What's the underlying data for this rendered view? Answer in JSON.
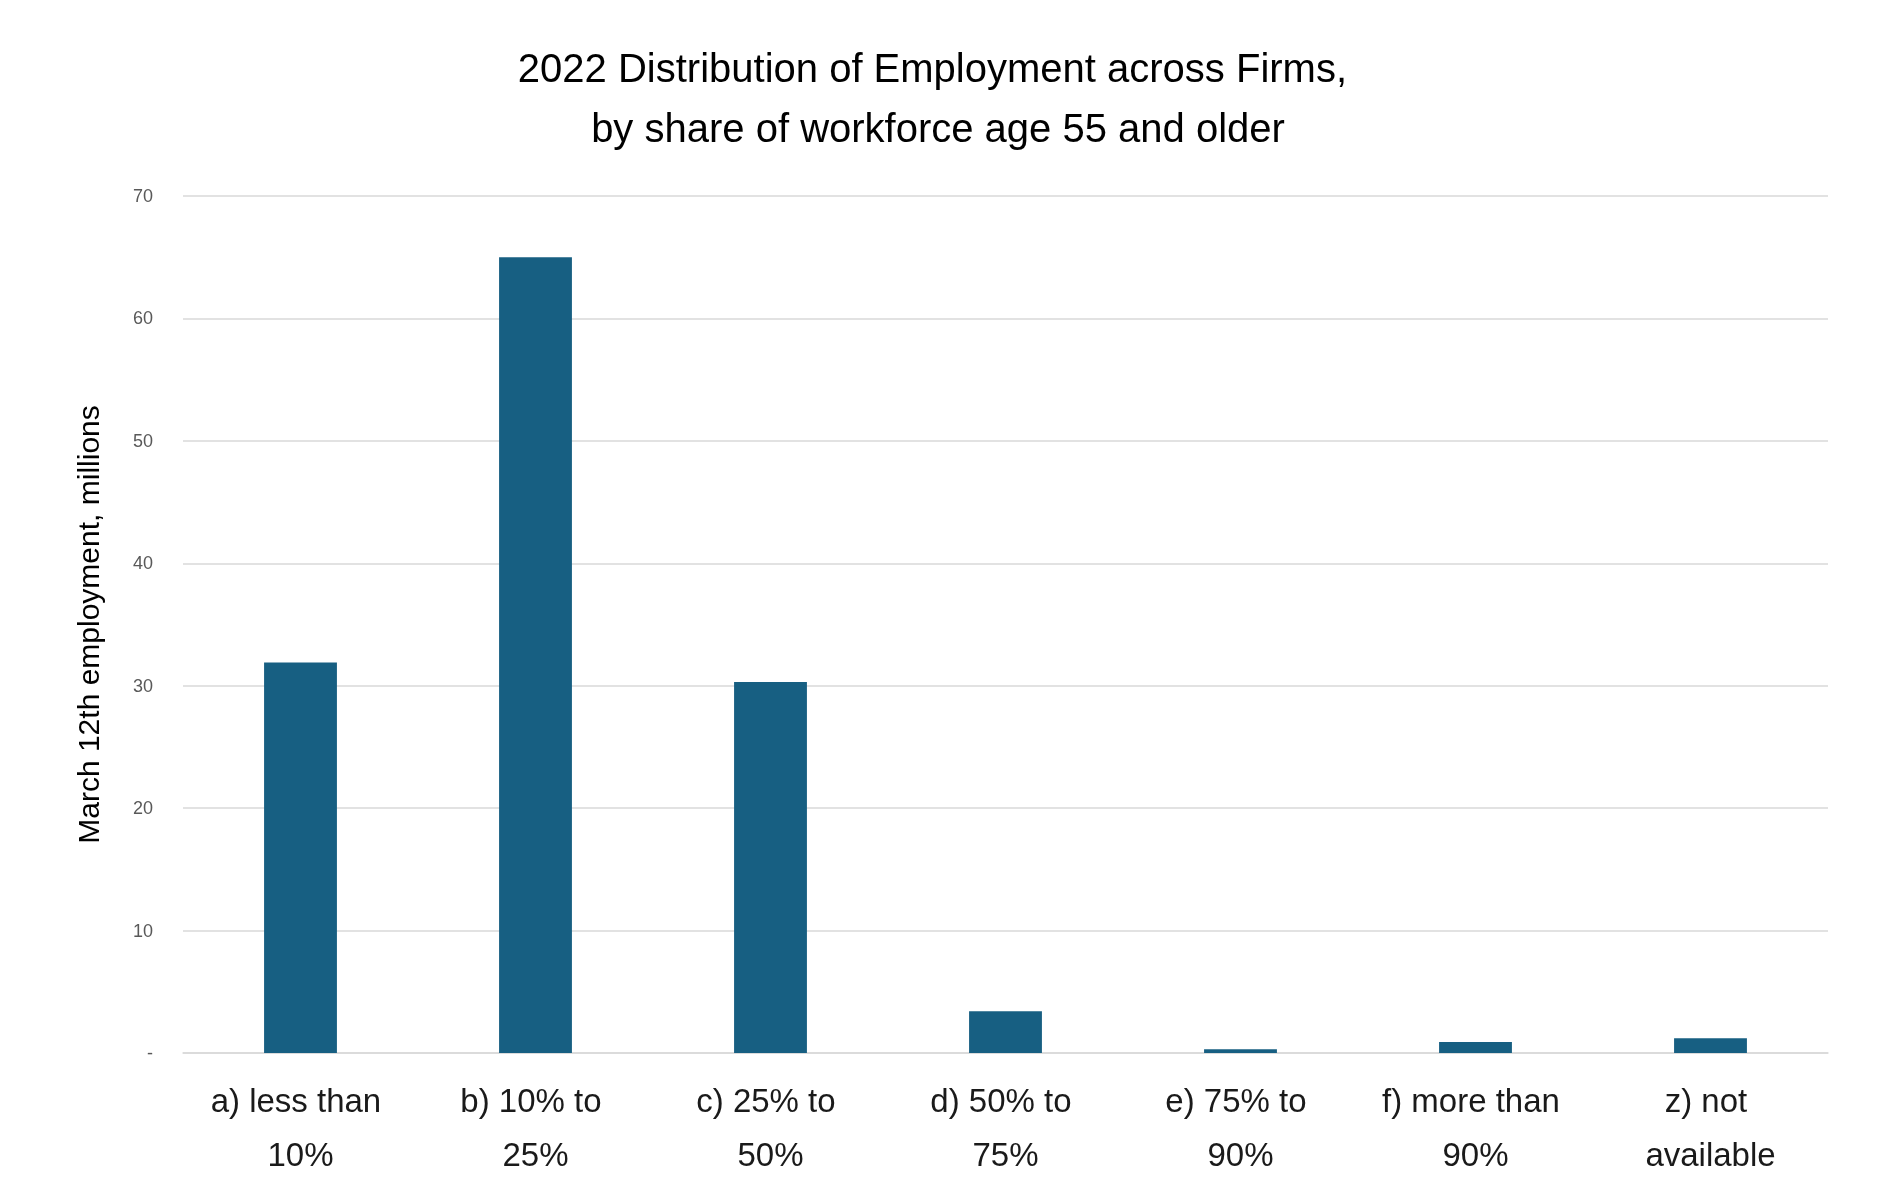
{
  "chart_data": {
    "type": "bar",
    "title": "2022 Distribution of Employment across Firms, by share of workforce age 55 and older",
    "ylabel": "March 12th employment, millions",
    "categories": [
      "a) less than 10%",
      "b) 10% to 25%",
      "c) 25% to 50%",
      "d) 50% to 75%",
      "e) 75% to 90%",
      "f) more than 90%",
      "z) not available"
    ],
    "values": [
      31.9,
      65.0,
      30.3,
      3.4,
      0.3,
      0.9,
      1.2
    ],
    "color": "#175f82",
    "ylim": [
      0,
      70
    ],
    "yticks": [
      {
        "value": 0,
        "label": "-"
      },
      10,
      20,
      30,
      40,
      50,
      60,
      70
    ],
    "grid": "y"
  }
}
